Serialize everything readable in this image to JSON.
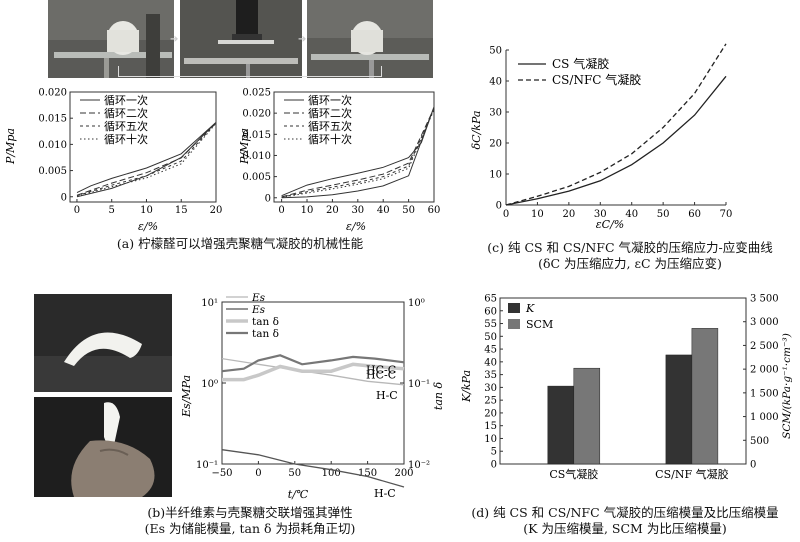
{
  "panel_a": {
    "caption": "(a) 柠檬醛可以增强壳聚糖气凝胶的机械性能",
    "photo_count": 3,
    "left_chart": {
      "ylabel": "P/Mpa",
      "xlabel": "ε/%",
      "xticks": [
        "0",
        "5",
        "10",
        "15",
        "20"
      ],
      "yticks": [
        "0",
        "0.005",
        "0.010",
        "0.015",
        "0.020"
      ],
      "legend": [
        "循环一次",
        "循环二次",
        "循环五次",
        "循环十次"
      ]
    },
    "right_chart": {
      "ylabel": "P/Mpa",
      "xlabel": "ε/%",
      "xticks": [
        "0",
        "10",
        "20",
        "30",
        "40",
        "50",
        "60"
      ],
      "yticks": [
        "0",
        "0.005",
        "0.010",
        "0.015",
        "0.020",
        "0.025"
      ],
      "legend": [
        "循环一次",
        "循环二次",
        "循环五次",
        "循环十次"
      ]
    }
  },
  "panel_b": {
    "caption_line1": "(b)半纤维素与壳聚糖交联增强其弹性",
    "caption_line2": "(Es 为储能模量, tan δ 为损耗角正切)",
    "ylabel_left": "Es/MPa",
    "ylabel_right": "tan δ",
    "xlabel": "t/℃",
    "left_ticks": [
      "10¹",
      "10⁰",
      "10⁻¹"
    ],
    "right_ticks": [
      "10⁰",
      "10⁻¹",
      "10⁻²"
    ],
    "xticks": [
      "−50",
      "0",
      "50",
      "100",
      "150",
      "200"
    ],
    "legend": [
      "Es",
      "Es",
      "tan δ",
      "tan δ"
    ],
    "labels": [
      "HC-C",
      "H-C",
      "HC-C",
      "H-C"
    ]
  },
  "panel_c": {
    "caption_line1": "(c) 纯 CS 和 CS/NFC 气凝胶的压缩应力-应变曲线",
    "caption_line2": "(δC 为压缩应力, εC 为压缩应变)",
    "ylabel": "δC/kPa",
    "xlabel": "εC/%",
    "xticks": [
      "0",
      "10",
      "20",
      "30",
      "40",
      "50",
      "60",
      "70"
    ],
    "yticks": [
      "0",
      "10",
      "20",
      "30",
      "40",
      "50"
    ],
    "legend": [
      "CS 气凝胶",
      "CS/NFC 气凝胶"
    ]
  },
  "panel_d": {
    "caption_line1": "(d) 纯 CS 和 CS/NFC 气凝胶的压缩模量及比压缩模量",
    "caption_line2": "(K 为压缩模量, SCM 为比压缩模量)",
    "ylabel_left": "K/kPa",
    "ylabel_right": "SCM/(kPa·g⁻¹·cm⁻³)",
    "left_ticks": [
      "0",
      "5",
      "10",
      "15",
      "20",
      "25",
      "30",
      "35",
      "40",
      "45",
      "50",
      "55",
      "60",
      "65"
    ],
    "right_ticks": [
      "0",
      "500",
      "1 000",
      "1 500",
      "2 000",
      "2 500",
      "3 000",
      "3 500"
    ],
    "categories": [
      "CS气凝胶",
      "CS/NF 气凝胶"
    ],
    "legend": [
      "K",
      "SCM"
    ]
  },
  "chart_data": [
    {
      "type": "line",
      "xlabel": "ε/%",
      "ylabel": "P/Mpa",
      "xlim": [
        -1,
        20
      ],
      "ylim": [
        -0.001,
        0.02
      ],
      "series": [
        {
          "name": "循环一次",
          "x": [
            0,
            2,
            5,
            10,
            15,
            20,
            15,
            10,
            5,
            0
          ],
          "y": [
            0.0008,
            0.0021,
            0.0035,
            0.0055,
            0.0082,
            0.0142,
            0.0075,
            0.004,
            0.0016,
            0.0
          ]
        },
        {
          "name": "循环二次",
          "x": [
            0,
            5,
            10,
            15,
            20
          ],
          "y": [
            0.0003,
            0.0026,
            0.0046,
            0.0074,
            0.0142
          ]
        },
        {
          "name": "循环五次",
          "x": [
            0,
            5,
            10,
            15,
            20
          ],
          "y": [
            0.0002,
            0.0022,
            0.004,
            0.0068,
            0.0141
          ]
        },
        {
          "name": "循环十次",
          "x": [
            0,
            5,
            10,
            15,
            20
          ],
          "y": [
            0.0001,
            0.0019,
            0.0036,
            0.0063,
            0.014
          ]
        }
      ]
    },
    {
      "type": "line",
      "xlabel": "ε/%",
      "ylabel": "P/Mpa",
      "xlim": [
        -3,
        60
      ],
      "ylim": [
        -0.001,
        0.025
      ],
      "series": [
        {
          "name": "循环一次",
          "x": [
            0,
            10,
            20,
            30,
            40,
            50,
            55,
            60,
            50,
            40,
            30,
            20,
            10,
            0
          ],
          "y": [
            0.0005,
            0.003,
            0.0045,
            0.0058,
            0.0072,
            0.0095,
            0.013,
            0.0215,
            0.0052,
            0.0028,
            0.0016,
            0.0007,
            0.0002,
            0.0
          ]
        },
        {
          "name": "循环二次",
          "x": [
            0,
            10,
            20,
            30,
            40,
            50,
            60
          ],
          "y": [
            0.0002,
            0.0018,
            0.003,
            0.0042,
            0.0056,
            0.0082,
            0.0212
          ]
        },
        {
          "name": "循环五次",
          "x": [
            0,
            10,
            20,
            30,
            40,
            50,
            60
          ],
          "y": [
            0.0001,
            0.0014,
            0.0025,
            0.0036,
            0.005,
            0.0075,
            0.021
          ]
        },
        {
          "name": "循环十次",
          "x": [
            0,
            10,
            20,
            30,
            40,
            50,
            60
          ],
          "y": [
            0.0001,
            0.0011,
            0.0021,
            0.0032,
            0.0045,
            0.007,
            0.0208
          ]
        }
      ]
    },
    {
      "type": "line",
      "log_y": true,
      "xlabel": "t/℃",
      "ylabel": "Es/MPa",
      "ylabel_right": "tan δ",
      "xlim": [
        -50,
        200
      ],
      "series": [
        {
          "name": "Es HC-C",
          "axis": "left",
          "x": [
            -50,
            0,
            50,
            100,
            150,
            200
          ],
          "y": [
            2.0,
            1.7,
            1.45,
            1.25,
            1.05,
            0.95
          ]
        },
        {
          "name": "Es H-C",
          "axis": "left",
          "x": [
            -50,
            0,
            50,
            100,
            150,
            200
          ],
          "y": [
            0.15,
            0.13,
            0.1,
            0.085,
            0.07,
            0.052
          ]
        },
        {
          "name": "tan δ HC-C",
          "axis": "right",
          "x": [
            -50,
            -20,
            0,
            30,
            60,
            100,
            130,
            160,
            200
          ],
          "y": [
            0.11,
            0.11,
            0.125,
            0.16,
            0.14,
            0.14,
            0.17,
            0.16,
            0.15
          ]
        },
        {
          "name": "tan δ H-C",
          "axis": "right",
          "x": [
            -50,
            -20,
            0,
            30,
            60,
            100,
            130,
            160,
            200
          ],
          "y": [
            0.14,
            0.15,
            0.19,
            0.22,
            0.17,
            0.19,
            0.21,
            0.2,
            0.18
          ]
        }
      ]
    },
    {
      "type": "line",
      "xlabel": "εC/%",
      "ylabel": "δC/kPa",
      "xlim": [
        0,
        70
      ],
      "ylim": [
        0,
        50
      ],
      "series": [
        {
          "name": "CS 气凝胶",
          "x": [
            0,
            10,
            20,
            30,
            40,
            50,
            60,
            70
          ],
          "y": [
            0,
            2,
            4.5,
            7.8,
            13,
            20,
            29,
            41.5
          ]
        },
        {
          "name": "CS/NFC 气凝胶",
          "x": [
            0,
            10,
            20,
            30,
            40,
            50,
            60,
            70
          ],
          "y": [
            0,
            2.8,
            6,
            10.5,
            16.5,
            25,
            36,
            52
          ]
        }
      ]
    },
    {
      "type": "bar",
      "categories": [
        "CS气凝胶",
        "CS/NF 气凝胶"
      ],
      "ylabel": "K/kPa",
      "ylabel_right": "SCM/(kPa·g⁻¹·cm⁻³)",
      "ylim": [
        0,
        65
      ],
      "ylim_right": [
        0,
        3500
      ],
      "series": [
        {
          "name": "K",
          "axis": "left",
          "values": [
            30.5,
            42.7
          ]
        },
        {
          "name": "SCM",
          "axis": "right",
          "values": [
            2020,
            2860
          ]
        }
      ]
    }
  ]
}
